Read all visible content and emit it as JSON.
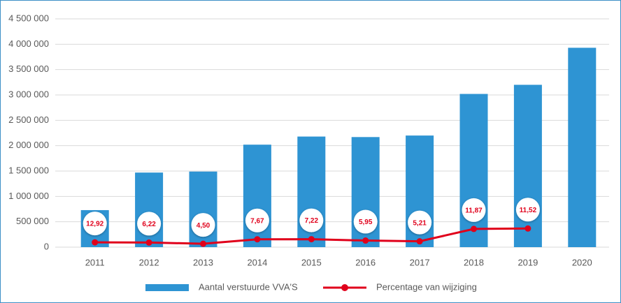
{
  "chart_data": {
    "type": "bar",
    "categories": [
      "2011",
      "2012",
      "2013",
      "2014",
      "2015",
      "2016",
      "2017",
      "2018",
      "2019",
      "2020"
    ],
    "series": [
      {
        "name": "Aantal verstuurde VVA'S",
        "color": "#2e94d3",
        "type": "bar",
        "values": [
          730000,
          1470000,
          1490000,
          2020000,
          2180000,
          2170000,
          2200000,
          3020000,
          3200000,
          3930000
        ]
      },
      {
        "name": "Percentage van wijziging",
        "color": "#e0001b",
        "type": "line",
        "values": [
          95000,
          91000,
          67000,
          155000,
          157000,
          130000,
          115000,
          359000,
          368000,
          null
        ],
        "labels": [
          "12,92",
          "6,22",
          "4,50",
          "7,67",
          "7,22",
          "5,95",
          "5,21",
          "11,87",
          "11,52",
          null
        ]
      }
    ],
    "ylim": [
      0,
      4500000
    ],
    "yticks": [
      0,
      {
        "value": 500000,
        "label": "500 000"
      },
      {
        "value": 1000000,
        "label": "1 000 000"
      },
      {
        "value": 1500000,
        "label": "1 500 000"
      },
      {
        "value": 2000000,
        "label": "2 000 000"
      },
      {
        "value": 2500000,
        "label": "2 500 000"
      },
      {
        "value": 3000000,
        "label": "3 000 000"
      },
      {
        "value": 3500000,
        "label": "3 500 000"
      },
      {
        "value": 4000000,
        "label": "4 000 000"
      },
      {
        "value": 4500000,
        "label": "4 500 000"
      }
    ],
    "grid": true,
    "legend": "bottom"
  }
}
